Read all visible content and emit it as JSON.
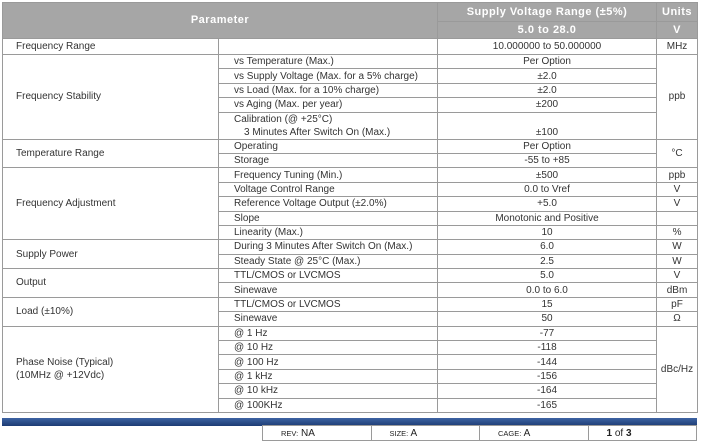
{
  "header": {
    "parameter": "Parameter",
    "supply_voltage": "Supply Voltage Range (±5%)",
    "units": "Units",
    "voltage_range": "5.0 to 28.0",
    "voltage_unit": "V"
  },
  "groups": [
    {
      "parameter": [
        "Frequency Range"
      ],
      "rows": [
        {
          "value": "10.000000 to 50.000000",
          "unit": "MHz"
        }
      ]
    },
    {
      "parameter": [
        "Frequency Stability"
      ],
      "unit": "ppb",
      "rows": [
        {
          "condition": [
            "vs Temperature (Max.)"
          ],
          "value": "Per Option"
        },
        {
          "condition": [
            "vs Supply Voltage (Max. for a 5% charge)"
          ],
          "value": "±2.0"
        },
        {
          "condition": [
            "vs Load (Max. for a 10% charge)"
          ],
          "value": "±2.0"
        },
        {
          "condition": [
            "vs Aging (Max. per year)"
          ],
          "value": "±200"
        },
        {
          "condition": [
            "Calibration (@ +25°C)",
            "3 Minutes After Switch On (Max.)"
          ],
          "value": "±100"
        }
      ]
    },
    {
      "parameter": [
        "Temperature Range"
      ],
      "unit": "°C",
      "rows": [
        {
          "condition": [
            "Operating"
          ],
          "value": "Per Option"
        },
        {
          "condition": [
            "Storage"
          ],
          "value": "-55 to +85"
        }
      ]
    },
    {
      "parameter": [
        "Frequency Adjustment"
      ],
      "rows": [
        {
          "condition": [
            "Frequency Tuning (Min.)"
          ],
          "value": "±500",
          "unit": "ppb"
        },
        {
          "condition": [
            "Voltage Control Range"
          ],
          "value": "0.0 to Vref",
          "unit": "V"
        },
        {
          "condition": [
            "Reference Voltage Output (±2.0%)"
          ],
          "value": "+5.0",
          "unit": "V"
        },
        {
          "condition": [
            "Slope"
          ],
          "value": "Monotonic and Positive"
        },
        {
          "condition": [
            "Linearity (Max.)"
          ],
          "value": "10",
          "unit": "%"
        }
      ]
    },
    {
      "parameter": [
        "Supply Power"
      ],
      "rows": [
        {
          "condition": [
            "During 3 Minutes After Switch On (Max.)"
          ],
          "value": "6.0",
          "unit": "W"
        },
        {
          "condition": [
            "Steady State @ 25°C (Max.)"
          ],
          "value": "2.5",
          "unit": "W"
        }
      ]
    },
    {
      "parameter": [
        "Output"
      ],
      "rows": [
        {
          "condition": [
            "TTL/CMOS or LVCMOS"
          ],
          "value": "5.0",
          "unit": "V"
        },
        {
          "condition": [
            "Sinewave"
          ],
          "value": "0.0 to 6.0",
          "unit": "dBm"
        }
      ]
    },
    {
      "parameter": [
        "Load (±10%)"
      ],
      "rows": [
        {
          "condition": [
            "TTL/CMOS or LVCMOS"
          ],
          "value": "15",
          "unit": "pF"
        },
        {
          "condition": [
            "Sinewave"
          ],
          "value": "50",
          "unit": "Ω"
        }
      ]
    },
    {
      "parameter": [
        "Phase Noise (Typical)",
        "(10MHz @ +12Vdc)"
      ],
      "unit": "dBc/Hz",
      "rows": [
        {
          "condition": [
            "@ 1 Hz"
          ],
          "value": "-77"
        },
        {
          "condition": [
            "@ 10 Hz"
          ],
          "value": "-118"
        },
        {
          "condition": [
            "@ 100 Hz"
          ],
          "value": "-144"
        },
        {
          "condition": [
            "@ 1 kHz"
          ],
          "value": "-156"
        },
        {
          "condition": [
            "@ 10 kHz"
          ],
          "value": "-164"
        },
        {
          "condition": [
            "@ 100KHz"
          ],
          "value": "-165"
        }
      ]
    }
  ],
  "footer": {
    "rev_label": "REV:",
    "rev": "NA",
    "size_label": "SIZE:",
    "size": "A",
    "cage_label": "CAGE:",
    "cage": "A",
    "page": "1",
    "page_of": "of",
    "page_total": "3"
  }
}
